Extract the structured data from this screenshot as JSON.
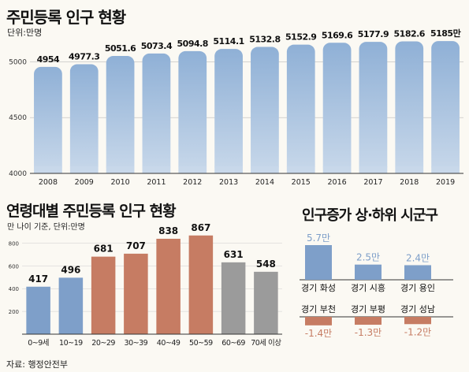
{
  "chart_data": [
    {
      "type": "bar",
      "title": "주민등록 인구 현황",
      "unit": "단위:만명",
      "categories": [
        "2008",
        "2009",
        "2010",
        "2011",
        "2012",
        "2013",
        "2014",
        "2015",
        "2016",
        "2017",
        "2018",
        "2019"
      ],
      "values": [
        4954,
        4977.3,
        5051.6,
        5073.4,
        5094.8,
        5114.1,
        5132.8,
        5152.9,
        5169.6,
        5177.9,
        5182.6,
        5185
      ],
      "value_labels": [
        "4954",
        "4977.3",
        "5051.6",
        "5073.4",
        "5094.8",
        "5114.1",
        "5132.8",
        "5152.9",
        "5169.6",
        "5177.9",
        "5182.6",
        "5185만"
      ],
      "yticks": [
        "4000",
        "4500",
        "5000"
      ],
      "ylim": [
        4000,
        5200
      ],
      "color": "#7e9fc9"
    },
    {
      "type": "bar",
      "title": "연령대별 주민등록 인구 현황",
      "unit": "만 나이 기준, 단위:만명",
      "categories": [
        "0~9세",
        "10~19",
        "20~29",
        "30~39",
        "40~49",
        "50~59",
        "60~69",
        "70세 이상"
      ],
      "values": [
        417,
        496,
        681,
        707,
        838,
        867,
        631,
        548
      ],
      "yticks": [
        "200",
        "400",
        "600",
        "800"
      ],
      "ylim": [
        0,
        900
      ],
      "colors": [
        "#7e9fc9",
        "#7e9fc9",
        "#c67c63",
        "#c67c63",
        "#c67c63",
        "#c67c63",
        "#9b9b9b",
        "#9b9b9b"
      ]
    },
    {
      "type": "bar",
      "title": "인구증가 상·하위 시군구",
      "top": [
        {
          "name": "경기 화성",
          "label": "5.7만",
          "value": 5.7
        },
        {
          "name": "경기 시흥",
          "label": "2.5만",
          "value": 2.5
        },
        {
          "name": "경기 용인",
          "label": "2.4만",
          "value": 2.4
        }
      ],
      "bottom": [
        {
          "name": "경기 부천",
          "label": "-1.4만",
          "value": -1.4
        },
        {
          "name": "경기 부평",
          "label": "-1.3만",
          "value": -1.3
        },
        {
          "name": "경기 성남",
          "label": "-1.2만",
          "value": -1.2
        }
      ],
      "colors": {
        "increase": "#7e9fc9",
        "decrease": "#c67c63"
      }
    }
  ],
  "source": "자료: 행정안전부"
}
